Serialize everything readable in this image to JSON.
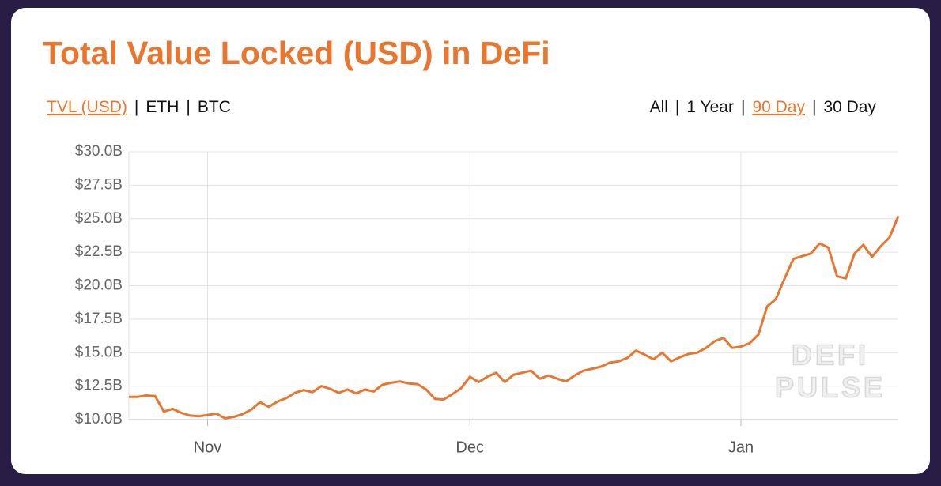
{
  "header": {
    "title": "Total Value Locked (USD) in DeFi",
    "left_tabs": [
      "TVL (USD)",
      "ETH",
      "BTC"
    ],
    "left_active": 0,
    "right_tabs": [
      "All",
      "1 Year",
      "90 Day",
      "30 Day"
    ],
    "right_active": 2,
    "separator": "|"
  },
  "watermark": [
    "DEFI",
    "PULSE"
  ],
  "chart_data": {
    "type": "line",
    "color": "#e8762f",
    "grid": true,
    "categories": [
      null,
      null,
      null,
      null,
      null,
      null,
      null,
      null,
      null,
      "Nov",
      null,
      null,
      null,
      null,
      null,
      null,
      null,
      null,
      null,
      null,
      null,
      null,
      null,
      null,
      null,
      null,
      null,
      null,
      null,
      null,
      null,
      null,
      null,
      null,
      null,
      null,
      null,
      null,
      null,
      "Dec",
      null,
      null,
      null,
      null,
      null,
      null,
      null,
      null,
      null,
      null,
      null,
      null,
      null,
      null,
      null,
      null,
      null,
      null,
      null,
      null,
      null,
      null,
      null,
      null,
      null,
      null,
      null,
      null,
      null,
      null,
      "Jan",
      null,
      null,
      null,
      null,
      null,
      null,
      null,
      null,
      null,
      null,
      null,
      null,
      null,
      null,
      null,
      null,
      null,
      null
    ],
    "values": [
      11.7,
      11.7,
      11.8,
      11.75,
      10.6,
      10.8,
      10.5,
      10.3,
      10.25,
      10.35,
      10.45,
      10.1,
      10.2,
      10.4,
      10.75,
      11.3,
      10.95,
      11.35,
      11.6,
      12.0,
      12.2,
      12.05,
      12.5,
      12.3,
      12.0,
      12.25,
      11.95,
      12.25,
      12.1,
      12.6,
      12.75,
      12.85,
      12.7,
      12.65,
      12.25,
      11.55,
      11.5,
      11.9,
      12.35,
      13.2,
      12.8,
      13.2,
      13.5,
      12.8,
      13.35,
      13.5,
      13.65,
      13.05,
      13.3,
      13.05,
      12.85,
      13.3,
      13.65,
      13.8,
      13.95,
      14.25,
      14.35,
      14.6,
      15.15,
      14.85,
      14.5,
      15.0,
      14.35,
      14.65,
      14.9,
      15.0,
      15.35,
      15.85,
      16.1,
      15.35,
      15.45,
      15.7,
      16.35,
      18.45,
      19.0,
      20.55,
      22.0,
      22.2,
      22.4,
      23.15,
      22.85,
      20.7,
      20.55,
      22.4,
      23.05,
      22.15,
      22.95,
      23.6,
      25.2
    ],
    "ylim": [
      10,
      30
    ],
    "yticks": [
      {
        "value": 10,
        "label": "$10.0B"
      },
      {
        "value": 12.5,
        "label": "$12.5B"
      },
      {
        "value": 15,
        "label": "$15.0B"
      },
      {
        "value": 17.5,
        "label": "$17.5B"
      },
      {
        "value": 20,
        "label": "$20.0B"
      },
      {
        "value": 22.5,
        "label": "$22.5B"
      },
      {
        "value": 25,
        "label": "$25.0B"
      },
      {
        "value": 27.5,
        "label": "$27.5B"
      },
      {
        "value": 30,
        "label": "$30.0B"
      }
    ]
  }
}
